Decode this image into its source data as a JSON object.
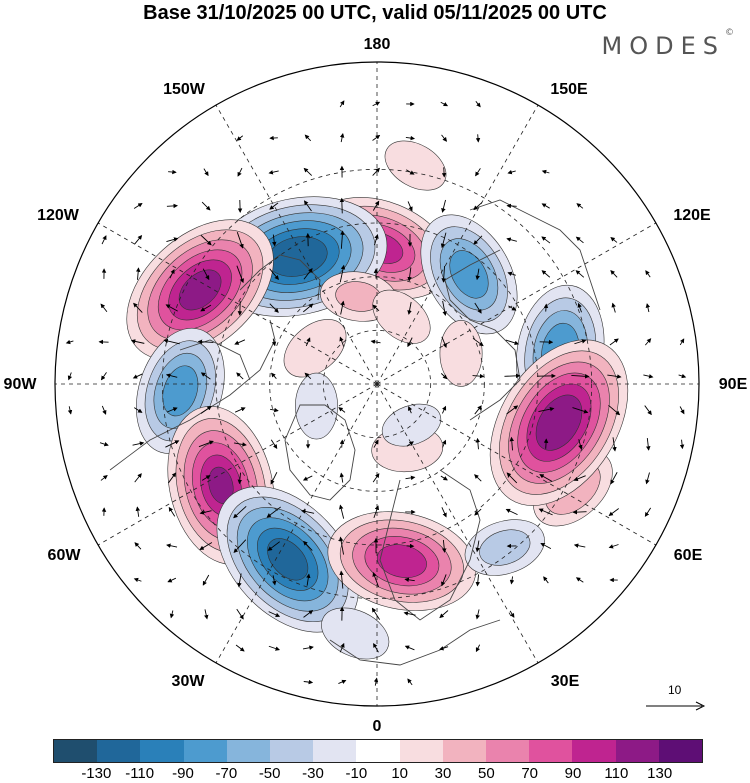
{
  "title": "Base 31/10/2025 00 UTC, valid 05/11/2025 00 UTC",
  "brand": "MODES",
  "brand_mark": "©",
  "longitude_labels": {
    "top": "180",
    "top_right": "150E",
    "right_upper": "120E",
    "right": "90E",
    "right_lower": "60E",
    "bottom_right": "30E",
    "bottom": "0",
    "bottom_left": "30W",
    "left_lower": "60W",
    "left": "90W",
    "left_upper": "120W",
    "top_left": "150W"
  },
  "vector_legend": {
    "label": "10"
  },
  "colorbar": {
    "ticks": [
      "-130",
      "-110",
      "-90",
      "-70",
      "-50",
      "-30",
      "-10",
      "10",
      "30",
      "50",
      "70",
      "90",
      "110",
      "130"
    ],
    "colors": [
      "#1f4e6e",
      "#20679a",
      "#2a80b9",
      "#4d9bcf",
      "#86b5dc",
      "#b8cae5",
      "#e2e4f2",
      "#ffffff",
      "#f8dde0",
      "#f2b3bf",
      "#ea83ad",
      "#e0529e",
      "#bf2490",
      "#8d1a86",
      "#5e0e75"
    ]
  },
  "map_data": {
    "anomalies": [
      {
        "lon": 178,
        "lat": 52,
        "value": 95
      },
      {
        "lon": -148,
        "lat": 48,
        "value": -130
      },
      {
        "lon": -118,
        "lat": 34,
        "value": 120
      },
      {
        "lon": -88,
        "lat": 35,
        "value": -80
      },
      {
        "lon": -57,
        "lat": 38,
        "value": 110
      },
      {
        "lon": -27,
        "lat": 35,
        "value": -120
      },
      {
        "lon": 8,
        "lat": 40,
        "value": 100
      },
      {
        "lon": 38,
        "lat": 32,
        "value": -35
      },
      {
        "lon": 62,
        "lat": 28,
        "value": 45
      },
      {
        "lon": 100,
        "lat": 38,
        "value": -85
      },
      {
        "lon": 78,
        "lat": 38,
        "value": 130
      },
      {
        "lon": 140,
        "lat": 50,
        "value": -80
      },
      {
        "lon": -168,
        "lat": 65,
        "value": 30
      },
      {
        "lon": 160,
        "lat": 70,
        "value": 20
      },
      {
        "lon": -120,
        "lat": 70,
        "value": 25
      },
      {
        "lon": 25,
        "lat": 70,
        "value": 25
      },
      {
        "lon": 110,
        "lat": 65,
        "value": 20
      },
      {
        "lon": -70,
        "lat": 72,
        "value": -20
      },
      {
        "lon": -5,
        "lat": 20,
        "value": -25
      },
      {
        "lon": 170,
        "lat": 28,
        "value": 20
      },
      {
        "lon": 40,
        "lat": 75,
        "value": -15
      }
    ]
  }
}
